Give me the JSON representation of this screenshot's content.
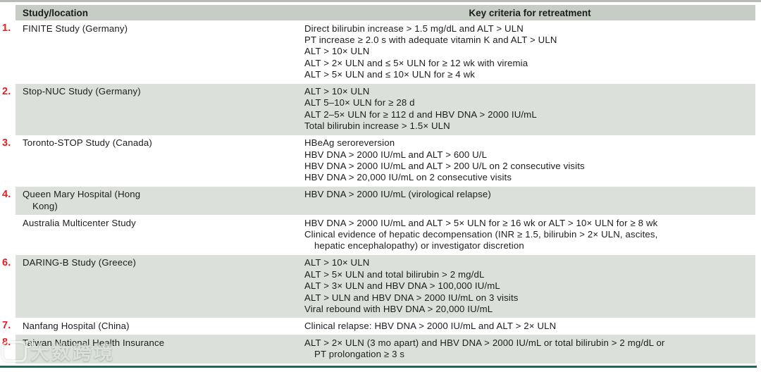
{
  "colors": {
    "accent_red": "#e31e25",
    "header_band": "#c6cdc5",
    "shaded_band": "#dbe1da",
    "bottom_border_green": "#0e7058",
    "top_strip_gray": "#b6bbb6"
  },
  "watermark": {
    "logo": "dashu-kuajing-logo",
    "text": "大数跨境"
  },
  "table": {
    "headers": {
      "study": "Study/location",
      "criteria": "Key criteria for retreatment"
    },
    "rows": [
      {
        "number": "1.",
        "shaded": false,
        "study": [
          {
            "text": "FINITE Study (Germany)",
            "indent": false
          }
        ],
        "criteria": [
          {
            "text": "Direct bilirubin increase > 1.5 mg/dL and ALT >  ULN",
            "indent": false
          },
          {
            "text": "PT increase ≥ 2.0 s with adequate vitamin K and ALT >  ULN",
            "indent": false
          },
          {
            "text": "ALT > 10× ULN",
            "indent": false
          },
          {
            "text": "ALT > 2× ULN and ≤ 5× ULN for ≥ 12 wk with viremia",
            "indent": false
          },
          {
            "text": "ALT > 5× ULN and ≤ 10× ULN for ≥ 4 wk",
            "indent": false
          }
        ]
      },
      {
        "number": "2.",
        "shaded": true,
        "study": [
          {
            "text": "Stop-NUC Study (Germany)",
            "indent": false
          }
        ],
        "criteria": [
          {
            "text": "ALT > 10× ULN",
            "indent": false
          },
          {
            "text": "ALT 5–10× ULN for ≥ 28 d",
            "indent": false
          },
          {
            "text": "ALT 2–5× ULN for ≥ 112 d and HBV DNA > 2000 IU/mL",
            "indent": false
          },
          {
            "text": "Total bilirubin increase > 1.5× ULN",
            "indent": false
          }
        ]
      },
      {
        "number": "3.",
        "shaded": false,
        "study": [
          {
            "text": "Toronto-STOP Study (Canada)",
            "indent": false
          }
        ],
        "criteria": [
          {
            "text": "HBeAg seroreversion",
            "indent": false
          },
          {
            "text": "HBV DNA > 2000 IU/mL and ALT > 600 U/L",
            "indent": false
          },
          {
            "text": "HBV DNA > 2000 IU/mL and ALT > 200 U/L on 2 consecutive visits",
            "indent": false
          },
          {
            "text": "HBV DNA > 20,000 IU/mL on 2 consecutive visits",
            "indent": false
          }
        ]
      },
      {
        "number": "4.",
        "shaded": true,
        "study": [
          {
            "text": "Queen Mary Hospital (Hong",
            "indent": false
          },
          {
            "text": "Kong)",
            "indent": true
          }
        ],
        "criteria": [
          {
            "text": "HBV DNA > 2000 IU/mL (virological relapse)",
            "indent": false
          }
        ]
      },
      {
        "number": "",
        "shaded": false,
        "study": [
          {
            "text": "Australia Multicenter Study",
            "indent": false
          }
        ],
        "criteria": [
          {
            "text": "HBV DNA > 2000 IU/mL and ALT > 5× ULN for ≥ 16 wk or ALT > 10× ULN for ≥ 8 wk",
            "indent": false
          },
          {
            "text": "Clinical evidence of hepatic decompensation (INR ≥ 1.5, bilirubin > 2× ULN, ascites,",
            "indent": false
          },
          {
            "text": "hepatic encephalopathy) or investigator discretion",
            "indent": true
          }
        ]
      },
      {
        "number": "6.",
        "shaded": true,
        "study": [
          {
            "text": "DARING-B Study (Greece)",
            "indent": false
          }
        ],
        "criteria": [
          {
            "text": "ALT > 10× ULN",
            "indent": false
          },
          {
            "text": "ALT > 5× ULN and total bilirubin > 2 mg/dL",
            "indent": false
          },
          {
            "text": "ALT > 3× ULN and HBV DNA > 100,000 IU/mL",
            "indent": false
          },
          {
            "text": "ALT > ULN and HBV DNA > 2000 IU/mL on 3 visits",
            "indent": false
          },
          {
            "text": "Viral rebound with HBV DNA > 20,000 IU/mL",
            "indent": false
          }
        ]
      },
      {
        "number": "7.",
        "shaded": false,
        "study": [
          {
            "text": "Nanfang Hospital (China)",
            "indent": false
          }
        ],
        "criteria": [
          {
            "text": "Clinical relapse: HBV DNA > 2000 IU/mL and ALT > 2× ULN",
            "indent": false
          }
        ]
      },
      {
        "number": "8.",
        "shaded": true,
        "study": [
          {
            "text": "Taiwan National Health Insurance",
            "indent": false
          }
        ],
        "criteria": [
          {
            "text": "ALT > 2× ULN (3 mo apart) and HBV DNA > 2000 IU/mL or total bilirubin > 2 mg/dL or",
            "indent": false
          },
          {
            "text": "PT prolongation ≥ 3 s",
            "indent": true
          }
        ]
      }
    ]
  }
}
